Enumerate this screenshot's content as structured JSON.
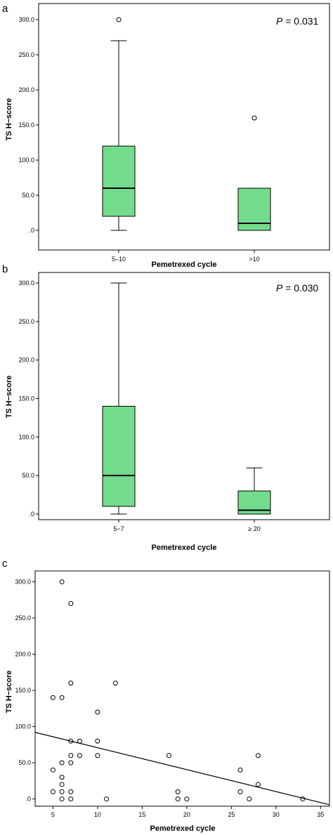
{
  "chart_data": [
    {
      "type": "box",
      "panel_label": "a",
      "xlabel": "Pemetrexed cycle",
      "ylabel": "TS H−score",
      "ylim": [
        0,
        300
      ],
      "yticks": [
        ".0",
        "50.0",
        "100.0",
        "150.0",
        "200.0",
        "250.0",
        "300.0"
      ],
      "annotation": {
        "p_symbol": "P",
        "p_text": " = 0.031"
      },
      "categories": [
        "5–10",
        ">10"
      ],
      "boxes": [
        {
          "category": "5–10",
          "min": 0,
          "q1": 20,
          "median": 60,
          "q3": 120,
          "max": 270,
          "outliers": [
            300
          ]
        },
        {
          "category": ">10",
          "min": 0,
          "q1": 0,
          "median": 10,
          "q3": 60,
          "max": 60,
          "outliers": [
            160
          ]
        }
      ],
      "box_color": "#73dc8c"
    },
    {
      "type": "box",
      "panel_label": "b",
      "xlabel": "Pemetrexed cycle",
      "ylabel": "TS H−score",
      "ylim": [
        0,
        300
      ],
      "yticks": [
        ".0",
        "50.0",
        "100.0",
        "150.0",
        "200.0",
        "250.0",
        "300.0"
      ],
      "annotation": {
        "p_symbol": "P",
        "p_text": " = 0.030"
      },
      "categories": [
        "5−7",
        "≥ 20"
      ],
      "boxes": [
        {
          "category": "5−7",
          "min": 0,
          "q1": 10,
          "median": 50,
          "q3": 140,
          "max": 300,
          "outliers": []
        },
        {
          "category": "≥ 20",
          "min": 0,
          "q1": 0,
          "median": 5,
          "q3": 30,
          "max": 60,
          "outliers": []
        }
      ],
      "box_color": "#73dc8c"
    },
    {
      "type": "scatter",
      "panel_label": "c",
      "xlabel": "Pemetrexed cycle",
      "ylabel": "TS H−score",
      "xlim": [
        3,
        36
      ],
      "ylim": [
        -10,
        315
      ],
      "xticks": [
        "5",
        "10",
        "15",
        "20",
        "25",
        "30",
        "35"
      ],
      "yticks": [
        ".0",
        "50.0",
        "100.0",
        "150.0",
        "200.0",
        "250.0",
        "300.0"
      ],
      "points": [
        {
          "x": 5,
          "y": 140
        },
        {
          "x": 5,
          "y": 40
        },
        {
          "x": 5,
          "y": 10
        },
        {
          "x": 6,
          "y": 300
        },
        {
          "x": 6,
          "y": 140
        },
        {
          "x": 6,
          "y": 50
        },
        {
          "x": 6,
          "y": 30
        },
        {
          "x": 6,
          "y": 20
        },
        {
          "x": 6,
          "y": 10
        },
        {
          "x": 6,
          "y": 0
        },
        {
          "x": 7,
          "y": 270
        },
        {
          "x": 7,
          "y": 160
        },
        {
          "x": 7,
          "y": 80
        },
        {
          "x": 7,
          "y": 60
        },
        {
          "x": 7,
          "y": 50
        },
        {
          "x": 7,
          "y": 10
        },
        {
          "x": 7,
          "y": 0
        },
        {
          "x": 8,
          "y": 80
        },
        {
          "x": 8,
          "y": 60
        },
        {
          "x": 10,
          "y": 120
        },
        {
          "x": 10,
          "y": 80
        },
        {
          "x": 10,
          "y": 60
        },
        {
          "x": 11,
          "y": 0
        },
        {
          "x": 12,
          "y": 160
        },
        {
          "x": 18,
          "y": 60
        },
        {
          "x": 19,
          "y": 10
        },
        {
          "x": 19,
          "y": 0
        },
        {
          "x": 20,
          "y": 0
        },
        {
          "x": 26,
          "y": 40
        },
        {
          "x": 26,
          "y": 10
        },
        {
          "x": 27,
          "y": 0
        },
        {
          "x": 28,
          "y": 60
        },
        {
          "x": 28,
          "y": 20
        },
        {
          "x": 33,
          "y": 0
        }
      ],
      "fit_line": [
        {
          "x": 3,
          "y": 92
        },
        {
          "x": 36,
          "y": -8
        }
      ]
    }
  ]
}
